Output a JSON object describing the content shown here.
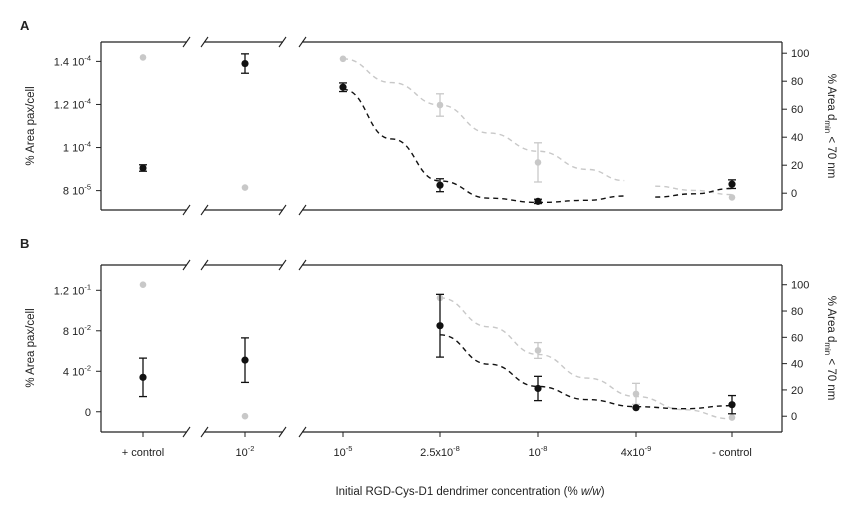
{
  "chart_data": [
    {
      "type": "scatter",
      "panel_label": "A",
      "categories": [
        "+ control",
        "10",
        "10",
        "2.5x10",
        "10",
        "4x10",
        "- control"
      ],
      "category_exponents": [
        "",
        "-2",
        "-5",
        "-8",
        "-8",
        "-9",
        ""
      ],
      "xlabel_prefix": "Initial RGD-Cys-D1 dendrimer concentration (% ",
      "xlabel_italic": "w/w",
      "xlabel_suffix": ")",
      "ylabel": "% Area pax/cell",
      "y2label_prefix": "% Area d",
      "y2label_sub": "min",
      "y2label_suffix": " < 70 nm",
      "left_ticks": [
        {
          "value": 0.00014,
          "label": "1.4 10",
          "exp": "-4"
        },
        {
          "value": 0.00012,
          "label": "1.2 10",
          "exp": "-4"
        },
        {
          "value": 0.0001,
          "label": "1 10",
          "exp": "-4"
        },
        {
          "value": 8e-05,
          "label": "8 10",
          "exp": "-5"
        }
      ],
      "left_ylim": [
        7.1e-05,
        0.000149
      ],
      "right_ticks": [
        100,
        80,
        60,
        40,
        20,
        0
      ],
      "right_ylim": [
        -12,
        108
      ],
      "series": [
        {
          "axis": "left",
          "color": "#111111",
          "points": [
            {
              "x": 0,
              "y": 9.05e-05,
              "err": 1.5e-06
            },
            {
              "x": 1,
              "y": 0.000139,
              "err": 4.5e-06
            },
            {
              "x": 2,
              "y": 0.000128,
              "err": 2e-06
            },
            {
              "x": 3,
              "y": 8.25e-05,
              "err": 3e-06
            },
            {
              "x": 4,
              "y": 7.5e-05,
              "err": 1e-06
            },
            {
              "x": 6,
              "y": 8.3e-05,
              "err": 2e-06
            }
          ]
        },
        {
          "axis": "right",
          "color": "#c8c8c8",
          "points": [
            {
              "x": 0,
              "y": 97,
              "err": 0
            },
            {
              "x": 1,
              "y": 4,
              "err": 0
            },
            {
              "x": 2,
              "y": 96,
              "err": 0
            },
            {
              "x": 3,
              "y": 63,
              "err": 8
            },
            {
              "x": 4,
              "y": 22,
              "err": 14
            },
            {
              "x": 6,
              "y": -3,
              "err": 0
            }
          ]
        }
      ],
      "fits": [
        {
          "axis": "left",
          "color": "#111111",
          "segments": [
            [
              [
                2,
                0.000127
              ],
              [
                2.5,
                0.000104
              ],
              [
                3,
                8.45e-05
              ],
              [
                3.5,
                7.65e-05
              ],
              [
                4,
                7.45e-05
              ],
              [
                4.5,
                7.55e-05
              ],
              [
                4.88,
                7.75e-05
              ]
            ],
            [
              [
                5.2,
                7.7e-05
              ],
              [
                5.6,
                7.85e-05
              ],
              [
                6,
                8.1e-05
              ]
            ]
          ]
        },
        {
          "axis": "right",
          "color": "#c8c8c8",
          "segments": [
            [
              [
                2,
                96
              ],
              [
                2.5,
                79
              ],
              [
                3,
                63
              ],
              [
                3.5,
                43
              ],
              [
                4,
                30
              ],
              [
                4.5,
                17
              ],
              [
                4.88,
                9
              ]
            ],
            [
              [
                5.2,
                5
              ],
              [
                5.6,
                2
              ],
              [
                6,
                -1
              ]
            ]
          ]
        }
      ]
    },
    {
      "type": "scatter",
      "panel_label": "B",
      "categories": [
        "+ control",
        "10",
        "10",
        "2.5x10",
        "10",
        "4x10",
        "- control"
      ],
      "category_exponents": [
        "",
        "-2",
        "-5",
        "-8",
        "-8",
        "-9",
        ""
      ],
      "ylabel": "% Area pax/cell",
      "y2label_prefix": "% Area d",
      "y2label_sub": "min",
      "y2label_suffix": " < 70 nm",
      "left_ticks": [
        {
          "value": 0.12,
          "label": "1.2 10",
          "exp": "-1"
        },
        {
          "value": 0.08,
          "label": "8 10",
          "exp": "-2"
        },
        {
          "value": 0.04,
          "label": "4 10",
          "exp": "-2"
        },
        {
          "value": 0,
          "label": "0",
          "exp": ""
        }
      ],
      "left_ylim": [
        -0.02,
        0.145
      ],
      "right_ticks": [
        100,
        80,
        60,
        40,
        20,
        0
      ],
      "right_ylim": [
        -12,
        115
      ],
      "series": [
        {
          "axis": "left",
          "color": "#111111",
          "points": [
            {
              "x": 0,
              "y": 0.034,
              "err": 0.019
            },
            {
              "x": 1,
              "y": 0.051,
              "err": 0.022
            },
            {
              "x": 3,
              "y": 0.085,
              "err": 0.031
            },
            {
              "x": 4,
              "y": 0.023,
              "err": 0.012
            },
            {
              "x": 5,
              "y": 0.004,
              "err": 0
            },
            {
              "x": 6,
              "y": 0.007,
              "err": 0.009
            }
          ]
        },
        {
          "axis": "right",
          "color": "#c8c8c8",
          "points": [
            {
              "x": 0,
              "y": 100,
              "err": 0
            },
            {
              "x": 1,
              "y": 0,
              "err": 0
            },
            {
              "x": 3,
              "y": 90,
              "err": 0
            },
            {
              "x": 4,
              "y": 50,
              "err": 6
            },
            {
              "x": 5,
              "y": 17,
              "err": 8
            },
            {
              "x": 6,
              "y": -1,
              "err": 0
            }
          ]
        }
      ],
      "fits": [
        {
          "axis": "left",
          "color": "#111111",
          "segments": [
            [
              [
                3,
                0.076
              ],
              [
                3.5,
                0.047
              ],
              [
                4,
                0.025
              ],
              [
                4.5,
                0.012
              ],
              [
                5,
                0.005
              ],
              [
                5.5,
                0.003
              ],
              [
                6,
                0.006
              ]
            ]
          ]
        },
        {
          "axis": "right",
          "color": "#c8c8c8",
          "segments": [
            [
              [
                3,
                90
              ],
              [
                3.5,
                68
              ],
              [
                4,
                47
              ],
              [
                4.5,
                29
              ],
              [
                5,
                15
              ],
              [
                5.5,
                5
              ],
              [
                6,
                -2
              ]
            ]
          ]
        }
      ]
    }
  ]
}
